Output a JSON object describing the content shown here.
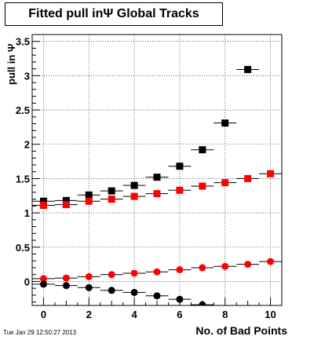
{
  "page": {
    "title": "Fitted pull inΨ   Global Tracks",
    "timestamp": "Tue Jan 29 12:50:27 2013"
  },
  "chart_data": {
    "type": "scatter",
    "title": "Fitted pull inΨ   Global Tracks",
    "xlabel": "No. of Bad Points",
    "ylabel": "pull in Ψ",
    "xlim": [
      -0.5,
      10.5
    ],
    "ylim": [
      -0.35,
      3.6
    ],
    "grid": true,
    "x_ticks": [
      0,
      2,
      4,
      6,
      8,
      10
    ],
    "y_ticks": [
      0,
      0.5,
      1,
      1.5,
      2,
      2.5,
      3,
      3.5
    ],
    "x_tick_labels": [
      "0",
      "2",
      "4",
      "6",
      "8",
      "10"
    ],
    "y_tick_labels": [
      "0",
      "0.5",
      "1",
      "1.5",
      "2",
      "2.5",
      "3",
      "3.5"
    ],
    "series": [
      {
        "marker": "square",
        "color": "#000000",
        "x": [
          0,
          1,
          2,
          3,
          4,
          5,
          6,
          7,
          8,
          9
        ],
        "y": [
          1.17,
          1.18,
          1.26,
          1.32,
          1.4,
          1.52,
          1.68,
          1.92,
          2.31,
          3.09
        ]
      },
      {
        "marker": "square",
        "color": "#ff0000",
        "x": [
          0,
          1,
          2,
          3,
          4,
          5,
          6,
          7,
          8,
          9,
          10
        ],
        "y": [
          1.11,
          1.12,
          1.17,
          1.2,
          1.24,
          1.28,
          1.33,
          1.39,
          1.44,
          1.5,
          1.57
        ]
      },
      {
        "marker": "circle",
        "color": "#ff0000",
        "x": [
          0,
          1,
          2,
          3,
          4,
          5,
          6,
          7,
          8,
          9,
          10
        ],
        "y": [
          0.04,
          0.05,
          0.07,
          0.1,
          0.12,
          0.14,
          0.17,
          0.2,
          0.22,
          0.25,
          0.29
        ]
      },
      {
        "marker": "circle",
        "color": "#000000",
        "x": [
          0,
          1,
          2,
          3,
          4,
          5,
          6,
          7
        ],
        "y": [
          -0.04,
          -0.06,
          -0.09,
          -0.13,
          -0.16,
          -0.21,
          -0.26,
          -0.34
        ]
      }
    ]
  }
}
